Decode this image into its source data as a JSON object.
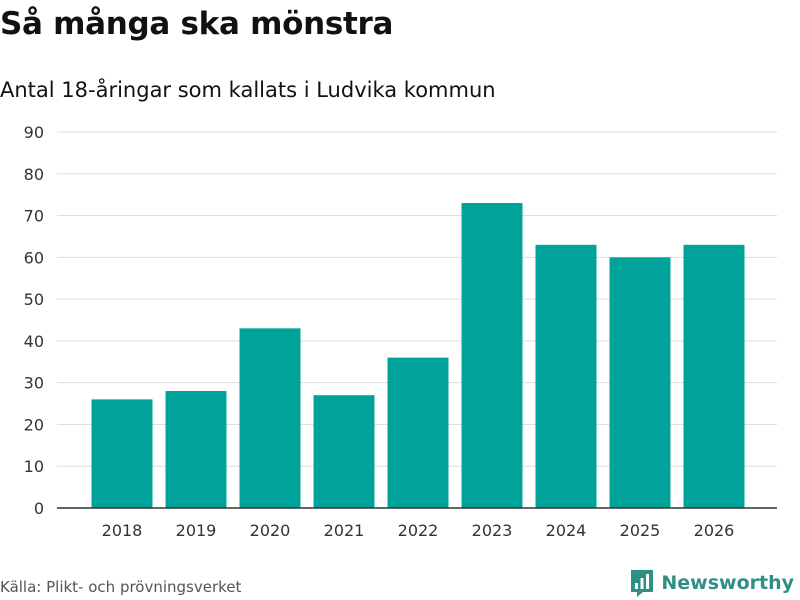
{
  "header": {
    "title": "Så många ska mönstra",
    "subtitle": "Antal 18-åringar som kallats i Ludvika kommun"
  },
  "footer": {
    "source": "Källa: Plikt- och prövningsverket",
    "brand": "Newsworthy",
    "brand_icon": "newsworthy-logo-icon"
  },
  "colors": {
    "bar": "#00a39a",
    "grid": "#dddddd",
    "axis": "#333333",
    "brand": "#2f8f86"
  },
  "chart_data": {
    "type": "bar",
    "title": "Så många ska mönstra",
    "subtitle": "Antal 18-åringar som kallats i Ludvika kommun",
    "xlabel": "",
    "ylabel": "",
    "categories": [
      "2018",
      "2019",
      "2020",
      "2021",
      "2022",
      "2023",
      "2024",
      "2025",
      "2026"
    ],
    "values": [
      26,
      28,
      43,
      27,
      36,
      73,
      63,
      60,
      63
    ],
    "ylim": [
      0,
      90
    ],
    "yticks": [
      0,
      10,
      20,
      30,
      40,
      50,
      60,
      70,
      80,
      90
    ],
    "grid": true,
    "legend": "none"
  }
}
